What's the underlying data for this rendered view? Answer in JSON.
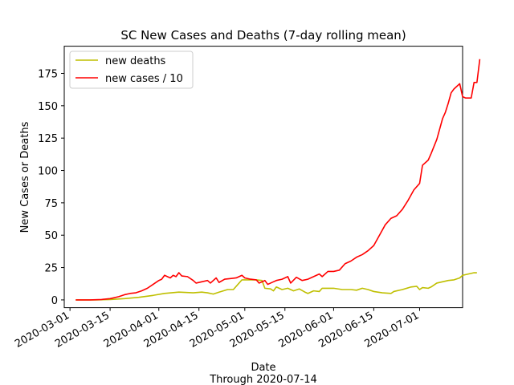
{
  "chart_data": {
    "type": "line",
    "title": "SC New Cases and Deaths (7-day rolling mean)",
    "xlabel": "Date",
    "xlabel_sub": "Through 2020-07-14",
    "ylabel": "New Cases or Deaths",
    "xlim": [
      "2020-02-28",
      "2020-07-16"
    ],
    "ylim": [
      -6,
      196
    ],
    "x_ticks": [
      "2020-03-01",
      "2020-03-15",
      "2020-04-01",
      "2020-04-15",
      "2020-05-01",
      "2020-05-15",
      "2020-06-01",
      "2020-06-15",
      "2020-07-01"
    ],
    "y_ticks": [
      0,
      25,
      50,
      75,
      100,
      125,
      150,
      175
    ],
    "grid": false,
    "legend_position": "top-left",
    "series": [
      {
        "name": "new deaths",
        "color": "#bfbf00",
        "points": [
          [
            "2020-03-03",
            0
          ],
          [
            "2020-03-10",
            0
          ],
          [
            "2020-03-15",
            0.3
          ],
          [
            "2020-03-20",
            1
          ],
          [
            "2020-03-25",
            2
          ],
          [
            "2020-03-30",
            3.5
          ],
          [
            "2020-04-03",
            5
          ],
          [
            "2020-04-08",
            6
          ],
          [
            "2020-04-13",
            5.5
          ],
          [
            "2020-04-16",
            6
          ],
          [
            "2020-04-18",
            5.5
          ],
          [
            "2020-04-20",
            4.5
          ],
          [
            "2020-04-22",
            6
          ],
          [
            "2020-04-25",
            8
          ],
          [
            "2020-04-27",
            8
          ],
          [
            "2020-04-29",
            13
          ],
          [
            "2020-04-30",
            15.5
          ],
          [
            "2020-05-02",
            15.5
          ],
          [
            "2020-05-05",
            15.5
          ],
          [
            "2020-05-07",
            15
          ],
          [
            "2020-05-08",
            9
          ],
          [
            "2020-05-10",
            8.5
          ],
          [
            "2020-05-11",
            7
          ],
          [
            "2020-05-12",
            10
          ],
          [
            "2020-05-14",
            8
          ],
          [
            "2020-05-16",
            9
          ],
          [
            "2020-05-18",
            7
          ],
          [
            "2020-05-20",
            8.5
          ],
          [
            "2020-05-22",
            6
          ],
          [
            "2020-05-23",
            5
          ],
          [
            "2020-05-25",
            7
          ],
          [
            "2020-05-27",
            6.5
          ],
          [
            "2020-05-28",
            9
          ],
          [
            "2020-06-01",
            9
          ],
          [
            "2020-06-04",
            8
          ],
          [
            "2020-06-07",
            8
          ],
          [
            "2020-06-09",
            7.5
          ],
          [
            "2020-06-11",
            9
          ],
          [
            "2020-06-13",
            8
          ],
          [
            "2020-06-15",
            6.5
          ],
          [
            "2020-06-18",
            5.5
          ],
          [
            "2020-06-21",
            5
          ],
          [
            "2020-06-22",
            6.5
          ],
          [
            "2020-06-25",
            8
          ],
          [
            "2020-06-28",
            10
          ],
          [
            "2020-06-30",
            10.5
          ],
          [
            "2020-07-01",
            8
          ],
          [
            "2020-07-02",
            9.5
          ],
          [
            "2020-07-04",
            9
          ],
          [
            "2020-07-05",
            10
          ],
          [
            "2020-07-07",
            13
          ],
          [
            "2020-07-09",
            14
          ],
          [
            "2020-07-11",
            15
          ],
          [
            "2020-07-13",
            15.5
          ],
          [
            "2020-07-15",
            17
          ],
          [
            "2020-07-16",
            19
          ],
          [
            "2020-07-18",
            20
          ],
          [
            "2020-07-20",
            21
          ],
          [
            "2020-07-21",
            21
          ]
        ]
      },
      {
        "name": "new cases / 10",
        "color": "#ff0000",
        "points": [
          [
            "2020-03-03",
            0
          ],
          [
            "2020-03-08",
            0
          ],
          [
            "2020-03-12",
            0.3
          ],
          [
            "2020-03-15",
            1
          ],
          [
            "2020-03-18",
            2.5
          ],
          [
            "2020-03-20",
            4
          ],
          [
            "2020-03-22",
            5
          ],
          [
            "2020-03-24",
            5.5
          ],
          [
            "2020-03-26",
            7
          ],
          [
            "2020-03-28",
            9
          ],
          [
            "2020-03-30",
            12
          ],
          [
            "2020-04-01",
            15
          ],
          [
            "2020-04-02",
            16
          ],
          [
            "2020-04-03",
            19
          ],
          [
            "2020-04-04",
            18
          ],
          [
            "2020-04-05",
            17
          ],
          [
            "2020-04-06",
            19
          ],
          [
            "2020-04-07",
            18
          ],
          [
            "2020-04-08",
            21
          ],
          [
            "2020-04-09",
            18.5
          ],
          [
            "2020-04-11",
            18
          ],
          [
            "2020-04-13",
            15
          ],
          [
            "2020-04-14",
            13
          ],
          [
            "2020-04-16",
            14
          ],
          [
            "2020-04-18",
            15
          ],
          [
            "2020-04-19",
            13
          ],
          [
            "2020-04-21",
            17
          ],
          [
            "2020-04-22",
            13.5
          ],
          [
            "2020-04-24",
            16
          ],
          [
            "2020-04-26",
            16.5
          ],
          [
            "2020-04-28",
            17
          ],
          [
            "2020-04-30",
            19
          ],
          [
            "2020-05-01",
            17
          ],
          [
            "2020-05-03",
            16
          ],
          [
            "2020-05-05",
            15.5
          ],
          [
            "2020-05-06",
            13
          ],
          [
            "2020-05-08",
            15
          ],
          [
            "2020-05-09",
            12
          ],
          [
            "2020-05-11",
            14
          ],
          [
            "2020-05-12",
            15
          ],
          [
            "2020-05-14",
            16
          ],
          [
            "2020-05-16",
            18
          ],
          [
            "2020-05-17",
            13
          ],
          [
            "2020-05-19",
            17.5
          ],
          [
            "2020-05-21",
            15
          ],
          [
            "2020-05-23",
            16
          ],
          [
            "2020-05-25",
            18
          ],
          [
            "2020-05-27",
            20
          ],
          [
            "2020-05-28",
            18
          ],
          [
            "2020-05-30",
            22
          ],
          [
            "2020-06-01",
            22
          ],
          [
            "2020-06-03",
            23
          ],
          [
            "2020-06-05",
            28
          ],
          [
            "2020-06-07",
            30
          ],
          [
            "2020-06-09",
            33
          ],
          [
            "2020-06-11",
            35
          ],
          [
            "2020-06-13",
            38
          ],
          [
            "2020-06-15",
            42
          ],
          [
            "2020-06-17",
            50
          ],
          [
            "2020-06-19",
            58
          ],
          [
            "2020-06-21",
            63
          ],
          [
            "2020-06-23",
            65
          ],
          [
            "2020-06-25",
            70
          ],
          [
            "2020-06-27",
            77
          ],
          [
            "2020-06-29",
            85
          ],
          [
            "2020-07-01",
            90
          ],
          [
            "2020-07-02",
            104
          ],
          [
            "2020-07-04",
            108
          ],
          [
            "2020-07-05",
            113
          ],
          [
            "2020-07-07",
            124
          ],
          [
            "2020-07-09",
            140
          ],
          [
            "2020-07-10",
            145
          ],
          [
            "2020-07-11",
            152
          ],
          [
            "2020-07-12",
            160
          ],
          [
            "2020-07-13",
            163
          ],
          [
            "2020-07-14",
            165
          ],
          [
            "2020-07-15",
            167
          ],
          [
            "2020-07-16",
            157
          ],
          [
            "2020-07-17",
            156
          ],
          [
            "2020-07-18",
            156
          ],
          [
            "2020-07-19",
            156
          ],
          [
            "2020-07-20",
            168
          ],
          [
            "2020-07-21",
            168
          ],
          [
            "2020-07-22",
            186
          ]
        ]
      }
    ]
  }
}
